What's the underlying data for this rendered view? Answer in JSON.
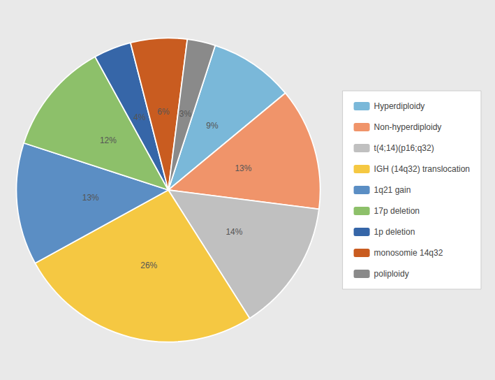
{
  "chart_data": {
    "type": "pie",
    "categories": [
      "Hyperdiploidy",
      "Non-hyperdiploidy",
      "t(4;14)(p16;q32)",
      "IGH (14q32) translocation",
      "1q21 gain",
      "17p deletion",
      "1p deletion",
      "monosomie 14q32",
      "poliploidy"
    ],
    "values": [
      9,
      13,
      14,
      26,
      13,
      12,
      4,
      6,
      3
    ],
    "value_labels": [
      "9%",
      "13%",
      "14%",
      "26%",
      "13%",
      "12%",
      "4%",
      "6%",
      "3%"
    ],
    "colors": [
      "#7ab8d9",
      "#f0946a",
      "#c0c0c0",
      "#f5c842",
      "#5b8ec4",
      "#8dc06a",
      "#3666a8",
      "#c95c20",
      "#8a8a8a"
    ],
    "data_labels": true,
    "legend": "right"
  }
}
